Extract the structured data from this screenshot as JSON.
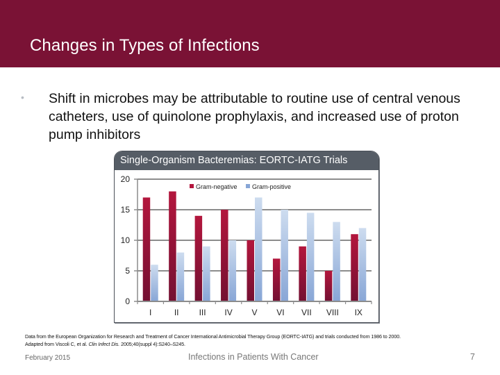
{
  "slide": {
    "title": "Changes in Types of Infections",
    "bullet": "Shift in microbes may be attributable to routine use of central venous catheters, use of quinolone prophylaxis, and increased use of proton pump inhibitors",
    "footnote_line1": "Data from the European Organization for Research and Treatment of Cancer International Antimicrobial Therapy Group (EORTC-IATG) and trials conducted from 1986 to 2000.",
    "footnote_line2_prefix": "Adapted from Viscoli C, et al. ",
    "footnote_line2_journal": "Clin Infect Dis.",
    "footnote_line2_suffix": " 2005;40(suppl 4):S240–S245.",
    "footer_date": "February 2015",
    "footer_title": "Infections in Patients With Cancer",
    "page_number": "7"
  },
  "colors": {
    "title_bar": "#7a1235",
    "chart_header": "#565d66",
    "gram_negative_top": "#b3163d",
    "gram_negative_bottom": "#731032",
    "gram_positive_top": "#cddcef",
    "gram_positive_bottom": "#88a6d6",
    "gridline": "#8c8c8c"
  },
  "chart_data": {
    "type": "bar",
    "title": "Single-Organism Bacteremias: EORTC-IATG Trials",
    "xlabel": "",
    "ylabel": "",
    "categories": [
      "I",
      "II",
      "III",
      "IV",
      "V",
      "VI",
      "VII",
      "VIII",
      "IX"
    ],
    "series": [
      {
        "name": "Gram-negative",
        "values": [
          17,
          18,
          14,
          15,
          10,
          7,
          9,
          5,
          11
        ]
      },
      {
        "name": "Gram-positive",
        "values": [
          6,
          8,
          9,
          10,
          17,
          15,
          14.5,
          13,
          12
        ]
      }
    ],
    "ylim": [
      0,
      20
    ],
    "yticks": [
      0,
      5,
      10,
      15,
      20
    ],
    "grid": true,
    "legend_position": "top-inside"
  }
}
